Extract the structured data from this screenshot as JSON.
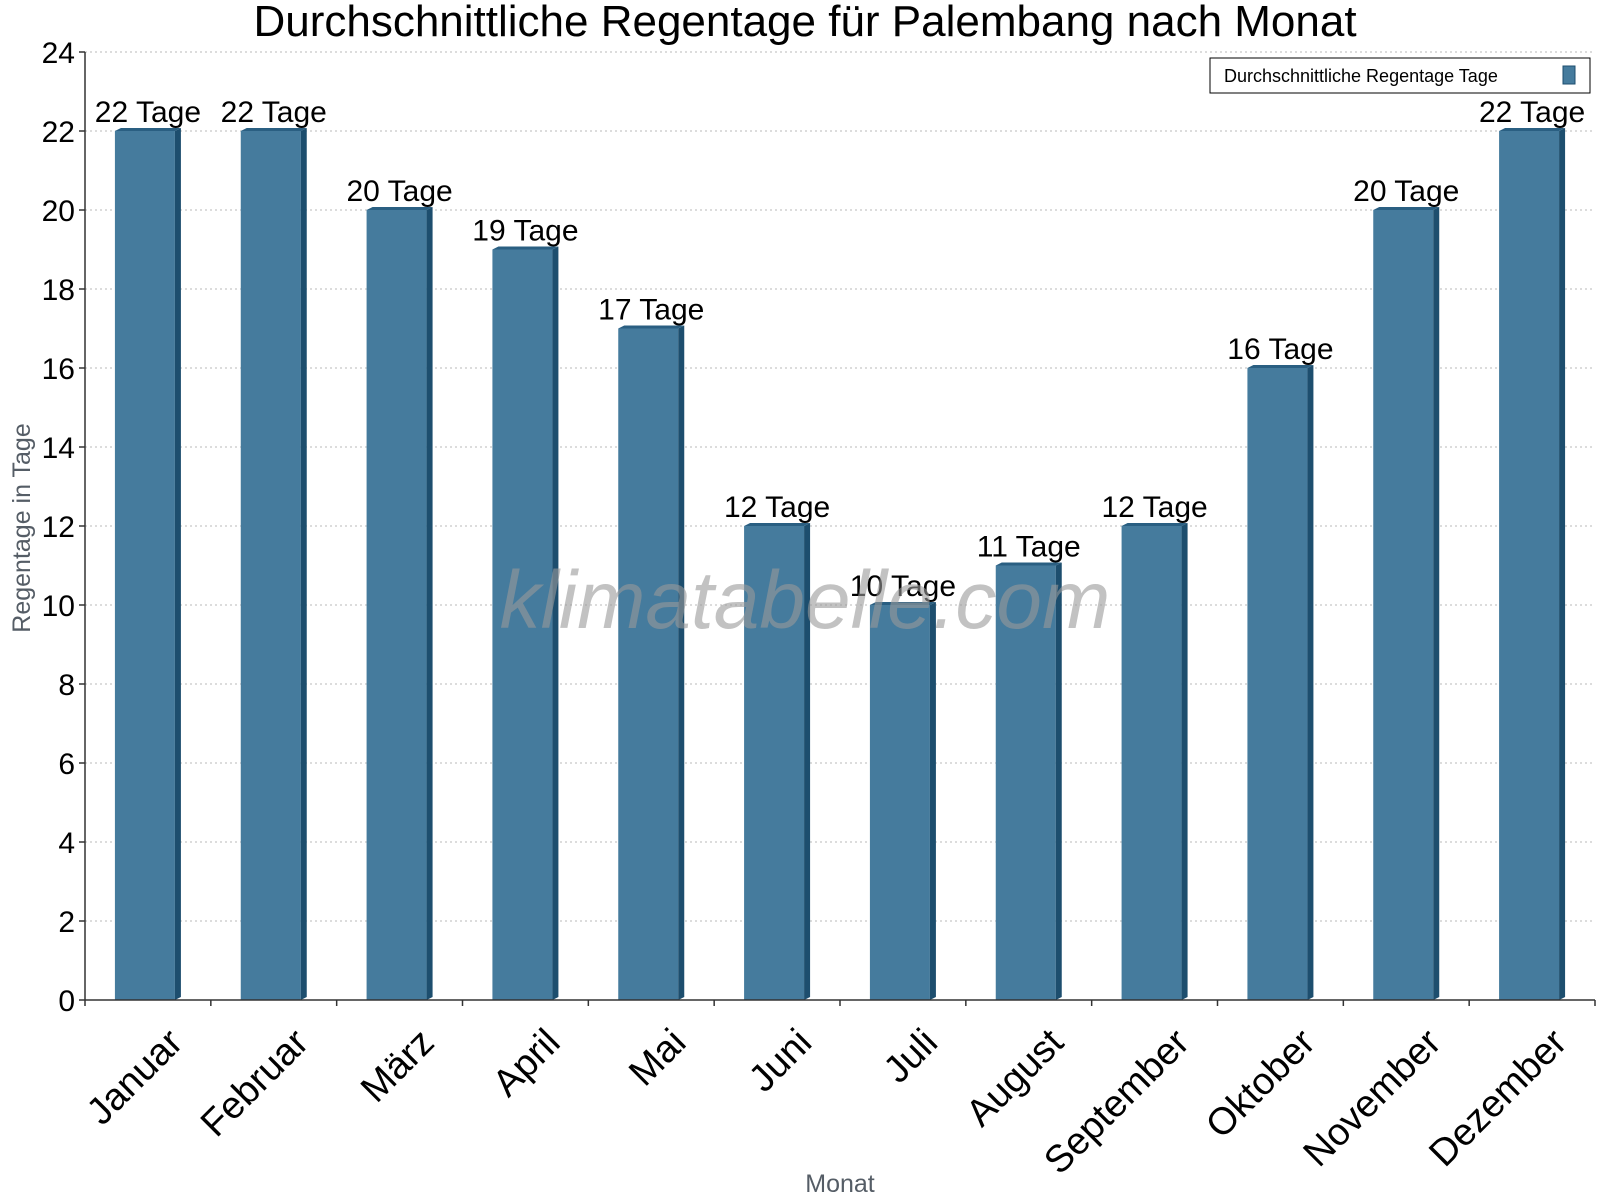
{
  "chart_data": {
    "type": "bar",
    "title": "Durchschnittliche Regentage für Palembang nach Monat",
    "xlabel": "Monat",
    "ylabel": "Regentage in Tage",
    "categories": [
      "Januar",
      "Februar",
      "März",
      "April",
      "Mai",
      "Juni",
      "Juli",
      "August",
      "September",
      "Oktober",
      "November",
      "Dezember"
    ],
    "series": [
      {
        "name": "Durchschnittliche Regentage Tage",
        "values": [
          22,
          22,
          20,
          19,
          17,
          12,
          10,
          11,
          12,
          16,
          20,
          22
        ],
        "data_labels": [
          "22 Tage",
          "22 Tage",
          "20 Tage",
          "19 Tage",
          "17 Tage",
          "12 Tage",
          "10 Tage",
          "11 Tage",
          "12 Tage",
          "16 Tage",
          "20 Tage",
          "22 Tage"
        ]
      }
    ],
    "ylim": [
      0,
      24
    ],
    "yticks": [
      0,
      2,
      4,
      6,
      8,
      10,
      12,
      14,
      16,
      18,
      20,
      22,
      24
    ],
    "grid": "horizontal dotted",
    "legend_position": "top-right",
    "colors": {
      "bar": "#457b9d",
      "bar_side": "#1d4e6e",
      "bar_top": "#2a5f82"
    }
  },
  "watermark": "klimatabelle.com"
}
